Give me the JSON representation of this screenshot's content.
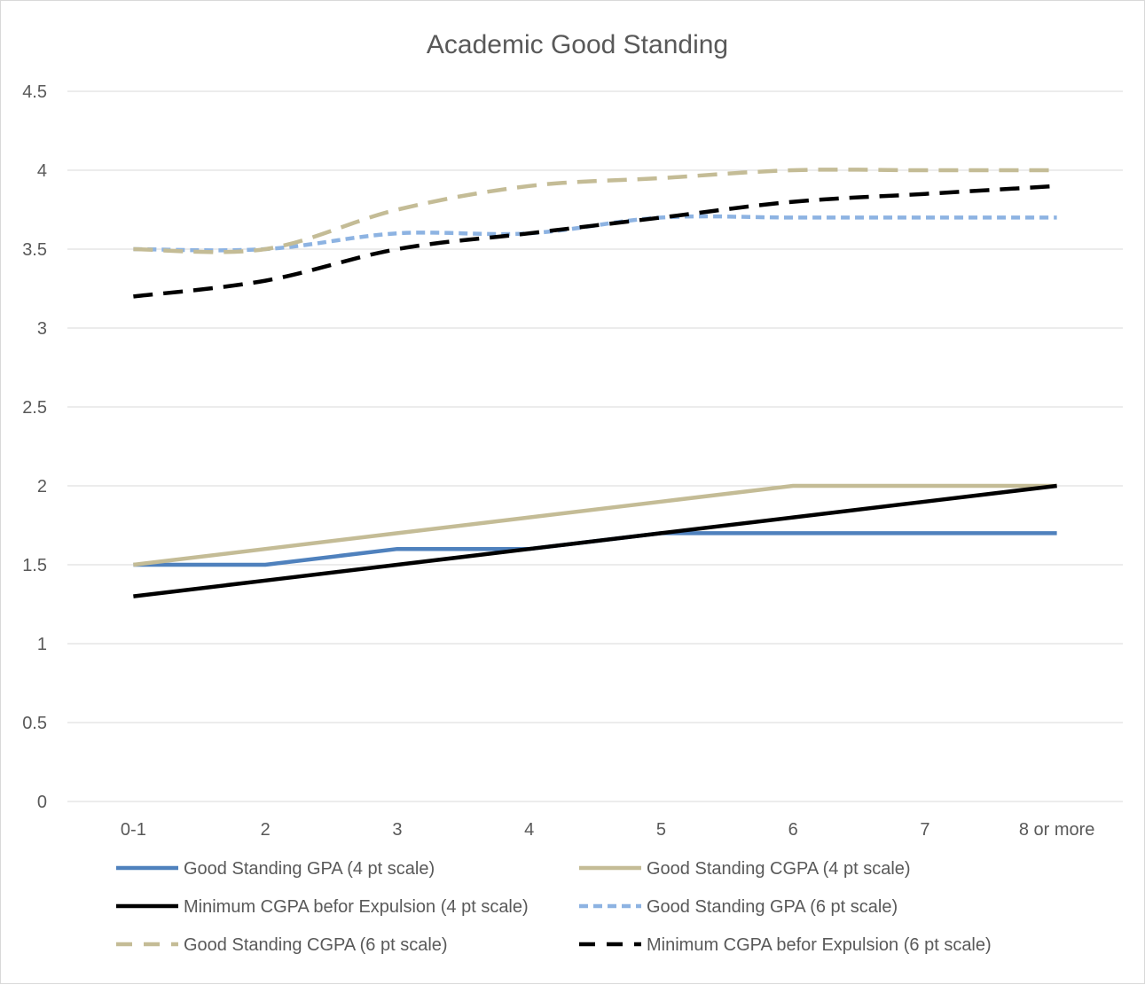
{
  "chart_data": {
    "type": "line",
    "title": "Academic Good Standing",
    "xlabel": "",
    "ylabel": "",
    "categories": [
      "0-1",
      "2",
      "3",
      "4",
      "5",
      "6",
      "7",
      "8 or more"
    ],
    "ylim": [
      0,
      4.5
    ],
    "yticks": [
      "0",
      "0.5",
      "1",
      "1.5",
      "2",
      "2.5",
      "3",
      "3.5",
      "4",
      "4.5"
    ],
    "grid": true,
    "legend_position": "bottom",
    "series": [
      {
        "name": "Good Standing GPA (4 pt scale)",
        "values": [
          1.5,
          1.5,
          1.6,
          1.6,
          1.7,
          1.7,
          1.7,
          1.7
        ],
        "color": "#4f81bd",
        "style": "solid"
      },
      {
        "name": "Good Standing CGPA (4 pt scale)",
        "values": [
          1.5,
          1.6,
          1.7,
          1.8,
          1.9,
          2.0,
          2.0,
          2.0
        ],
        "color": "#c4bc96",
        "style": "solid"
      },
      {
        "name": "Minimum CGPA befor Expulsion (4 pt scale)",
        "values": [
          1.3,
          1.4,
          1.5,
          1.6,
          1.7,
          1.8,
          1.9,
          2.0
        ],
        "color": "#000000",
        "style": "solid"
      },
      {
        "name": "Good Standing GPA (6 pt scale)",
        "values": [
          3.5,
          3.5,
          3.6,
          3.6,
          3.7,
          3.7,
          3.7,
          3.7
        ],
        "color": "#8db3e2",
        "style": "dotted"
      },
      {
        "name": "Good Standing CGPA (6 pt scale)",
        "values": [
          3.5,
          3.5,
          3.75,
          3.9,
          3.95,
          4.0,
          4.0,
          4.0
        ],
        "color": "#c4bc96",
        "style": "dashed"
      },
      {
        "name": "Minimum CGPA befor Expulsion (6 pt scale)",
        "values": [
          3.2,
          3.3,
          3.5,
          3.6,
          3.7,
          3.8,
          3.85,
          3.9
        ],
        "color": "#000000",
        "style": "dashed"
      }
    ]
  }
}
